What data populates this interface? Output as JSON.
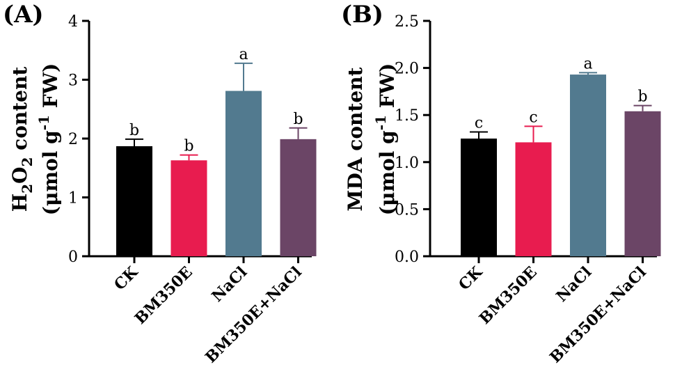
{
  "chart_data": [
    {
      "type": "bar",
      "panel_label": "(A)",
      "categories": [
        "CK",
        "BM350E",
        "NaCl",
        "BM350E+NaCl"
      ],
      "values": [
        1.87,
        1.63,
        2.81,
        1.99
      ],
      "errors": [
        0.12,
        0.09,
        0.47,
        0.19
      ],
      "significance": [
        "b",
        "b",
        "a",
        "b"
      ],
      "colors": [
        "#000000",
        "#e81c4f",
        "#527a8f",
        "#6b4566"
      ],
      "ylabel_line1_main": "H",
      "ylabel_line1_sub1": "2",
      "ylabel_line1_mid": "O",
      "ylabel_line1_sub2": "2",
      "ylabel_line1_tail": " content",
      "ylabel_line2_pre": "(μmol g",
      "ylabel_line2_sup": "-1",
      "ylabel_line2_post": " FW)",
      "ylim": [
        0,
        4
      ],
      "yticks": [
        0,
        1,
        2,
        3,
        4
      ],
      "ytick_labels": [
        "0",
        "1",
        "2",
        "3",
        "4"
      ]
    },
    {
      "type": "bar",
      "panel_label": "(B)",
      "categories": [
        "CK",
        "BM350E",
        "NaCl",
        "BM350E+NaCl"
      ],
      "values": [
        1.25,
        1.21,
        1.93,
        1.54
      ],
      "errors": [
        0.07,
        0.17,
        0.02,
        0.06
      ],
      "significance": [
        "c",
        "c",
        "a",
        "b"
      ],
      "colors": [
        "#000000",
        "#e81c4f",
        "#527a8f",
        "#6b4566"
      ],
      "ylabel_line1": "MDA content",
      "ylabel_line2_pre": "(μmol g",
      "ylabel_line2_sup": "-1",
      "ylabel_line2_post": " FW)",
      "ylim": [
        0,
        2.5
      ],
      "yticks": [
        0,
        0.5,
        1.0,
        1.5,
        2.0,
        2.5
      ],
      "ytick_labels": [
        "0.0",
        "0.5",
        "1.0",
        "1.5",
        "2.0",
        "2.5"
      ]
    }
  ]
}
